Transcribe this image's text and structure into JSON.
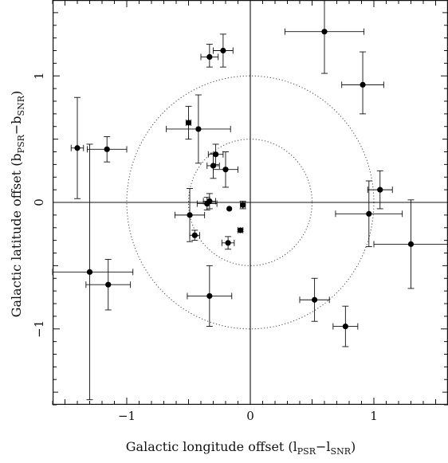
{
  "chart_data": {
    "type": "scatter",
    "title": "",
    "xlabel": "Galactic longitude offset (l",
    "xlabel_sub1": "PSR",
    "xlabel_mid": "−l",
    "xlabel_sub2": "SNR",
    "xlabel_end": ")",
    "ylabel": "Galactic latitude offset (b",
    "ylabel_sub1": "PSR",
    "ylabel_mid": "−b",
    "ylabel_sub2": "SNR",
    "ylabel_end": ")",
    "xlim": [
      -1.6,
      1.6
    ],
    "ylim": [
      -1.6,
      1.6
    ],
    "xticks": [
      {
        "value": -1,
        "label": "−1"
      },
      {
        "value": 0,
        "label": "0"
      },
      {
        "value": 1,
        "label": "1"
      }
    ],
    "yticks": [
      {
        "value": -1,
        "label": "−1"
      },
      {
        "value": 0,
        "label": "0"
      },
      {
        "value": 1,
        "label": "1"
      }
    ],
    "reference_circles": [
      0.5,
      1.0
    ],
    "zero_lines": true,
    "grid": false,
    "points": [
      {
        "x": 0.6,
        "y": 1.35,
        "xerr": [
          0.32,
          0.32
        ],
        "yerr": [
          0.33,
          0.33
        ]
      },
      {
        "x": -0.22,
        "y": 1.2,
        "xerr": [
          0.08,
          0.08
        ],
        "yerr": [
          0.13,
          0.13
        ]
      },
      {
        "x": -0.33,
        "y": 1.15,
        "xerr": [
          0.07,
          0.07
        ],
        "yerr": [
          0.08,
          0.1
        ]
      },
      {
        "x": 0.91,
        "y": 0.93,
        "xerr": [
          0.17,
          0.17
        ],
        "yerr": [
          0.23,
          0.26
        ]
      },
      {
        "x": -0.5,
        "y": 0.63,
        "xerr": [
          0.02,
          0.02
        ],
        "yerr": [
          0.13,
          0.13
        ]
      },
      {
        "x": -0.42,
        "y": 0.58,
        "xerr": [
          0.26,
          0.26
        ],
        "yerr": [
          0.27,
          0.27
        ]
      },
      {
        "x": -1.4,
        "y": 0.43,
        "xerr": [
          0.05,
          0.05
        ],
        "yerr": [
          0.4,
          0.4
        ]
      },
      {
        "x": -1.16,
        "y": 0.42,
        "xerr": [
          0.16,
          0.16
        ],
        "yerr": [
          0.1,
          0.1
        ]
      },
      {
        "x": -0.28,
        "y": 0.38,
        "xerr": [
          0.06,
          0.06
        ],
        "yerr": [
          0.08,
          0.08
        ]
      },
      {
        "x": -0.3,
        "y": 0.29,
        "xerr": [
          0.05,
          0.05
        ],
        "yerr": [
          0.1,
          0.1
        ]
      },
      {
        "x": -0.2,
        "y": 0.26,
        "xerr": [
          0.1,
          0.1
        ],
        "yerr": [
          0.14,
          0.14
        ]
      },
      {
        "x": 1.05,
        "y": 0.1,
        "xerr": [
          0.1,
          0.1
        ],
        "yerr": [
          0.15,
          0.15
        ]
      },
      {
        "x": -0.33,
        "y": 0.01,
        "xerr": [
          0.05,
          0.05
        ],
        "yerr": [
          0.06,
          0.06
        ]
      },
      {
        "x": -0.35,
        "y": -0.01,
        "xerr": [
          0.08,
          0.08
        ],
        "yerr": [
          0.05,
          0.05
        ]
      },
      {
        "x": -0.06,
        "y": -0.02,
        "xerr": [
          0.02,
          0.02
        ],
        "yerr": [
          0.03,
          0.03
        ]
      },
      {
        "x": -0.17,
        "y": -0.05,
        "xerr": [
          0.0,
          0.0
        ],
        "yerr": [
          0.0,
          0.0
        ]
      },
      {
        "x": -0.49,
        "y": -0.1,
        "xerr": [
          0.12,
          0.12
        ],
        "yerr": [
          0.21,
          0.21
        ]
      },
      {
        "x": 0.96,
        "y": -0.09,
        "xerr": [
          0.27,
          0.27
        ],
        "yerr": [
          0.26,
          0.26
        ]
      },
      {
        "x": -0.08,
        "y": -0.22,
        "xerr": [
          0.02,
          0.02
        ],
        "yerr": [
          0.01,
          0.01
        ]
      },
      {
        "x": -0.45,
        "y": -0.26,
        "xerr": [
          0.04,
          0.04
        ],
        "yerr": [
          0.04,
          0.04
        ]
      },
      {
        "x": -0.18,
        "y": -0.32,
        "xerr": [
          0.05,
          0.05
        ],
        "yerr": [
          0.05,
          0.05
        ]
      },
      {
        "x": 1.3,
        "y": -0.33,
        "xerr": [
          0.3,
          0.3
        ],
        "yerr": [
          0.35,
          0.35
        ]
      },
      {
        "x": -1.3,
        "y": -0.55,
        "xerr": [
          0.35,
          0.35
        ],
        "yerr": [
          1.01,
          1.01
        ]
      },
      {
        "x": -1.15,
        "y": -0.65,
        "xerr": [
          0.18,
          0.18
        ],
        "yerr": [
          0.2,
          0.2
        ]
      },
      {
        "x": -0.33,
        "y": -0.74,
        "xerr": [
          0.18,
          0.18
        ],
        "yerr": [
          0.24,
          0.24
        ]
      },
      {
        "x": 0.52,
        "y": -0.77,
        "xerr": [
          0.12,
          0.12
        ],
        "yerr": [
          0.17,
          0.17
        ]
      },
      {
        "x": 0.77,
        "y": -0.98,
        "xerr": [
          0.1,
          0.1
        ],
        "yerr": [
          0.16,
          0.16
        ]
      }
    ]
  }
}
